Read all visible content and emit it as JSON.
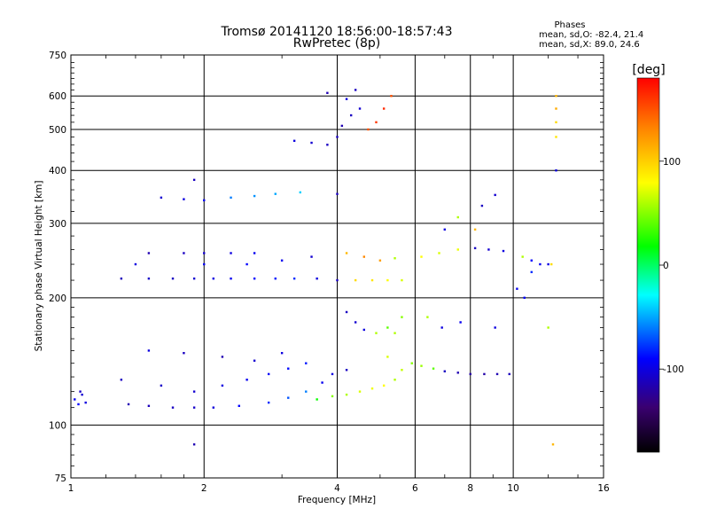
{
  "chart_data": {
    "type": "scatter",
    "title": "Tromsø 20141120 18:56:00-18:57:43",
    "subtitle": "RwPretec (8p)",
    "xlabel": "Frequency [MHz]",
    "ylabel": "Stationary phase Virtual Height [km]",
    "x_scale": "log",
    "y_scale": "log",
    "xlim": [
      1,
      16
    ],
    "ylim": [
      75,
      750
    ],
    "x_ticks": [
      1,
      2,
      4,
      6,
      8,
      10,
      16
    ],
    "x_tick_labels": [
      "1",
      "2",
      "4",
      "6",
      "8",
      "10",
      "16"
    ],
    "y_ticks": [
      75,
      100,
      200,
      300,
      400,
      500,
      600,
      750
    ],
    "y_tick_labels": [
      "75",
      "100",
      "200",
      "300",
      "400",
      "500",
      "600",
      "750"
    ],
    "grid": true,
    "stats": {
      "heading": "Phases",
      "o_line": "mean, sd,O: -82.4, 21.4",
      "x_line": "mean, sd,X: 89.0, 24.6"
    },
    "colorbar": {
      "label": "[deg]",
      "range": [
        -180,
        180
      ],
      "ticks": [
        100,
        0,
        -100
      ],
      "tick_labels": [
        "100",
        "0",
        "-100"
      ],
      "colors": [
        "#000000",
        "#3a0070",
        "#0000ff",
        "#00ffff",
        "#00ff00",
        "#ffff00",
        "#ff8000",
        "#ff0000"
      ]
    },
    "series": [
      {
        "name": "",
        "points": [
          [
            1.02,
            115,
            -95
          ],
          [
            1.04,
            112,
            -90
          ],
          [
            1.06,
            118,
            -105
          ],
          [
            1.08,
            113,
            -100
          ],
          [
            1.05,
            120,
            -110
          ],
          [
            1.35,
            112,
            -115
          ],
          [
            1.5,
            111,
            -112
          ],
          [
            1.7,
            110,
            -110
          ],
          [
            1.9,
            110,
            -108
          ],
          [
            2.1,
            110,
            -102
          ],
          [
            2.4,
            111,
            -90
          ],
          [
            2.8,
            113,
            -80
          ],
          [
            3.1,
            116,
            -70
          ],
          [
            3.4,
            120,
            -60
          ],
          [
            3.7,
            126,
            -95
          ],
          [
            3.9,
            132,
            -100
          ],
          [
            4.2,
            135,
            -110
          ],
          [
            1.3,
            128,
            -110
          ],
          [
            1.6,
            124,
            -108
          ],
          [
            1.9,
            120,
            -105
          ],
          [
            2.2,
            124,
            -100
          ],
          [
            2.5,
            128,
            -95
          ],
          [
            2.8,
            132,
            -92
          ],
          [
            3.1,
            136,
            -88
          ],
          [
            3.4,
            140,
            -85
          ],
          [
            1.5,
            150,
            -100
          ],
          [
            1.8,
            148,
            -110
          ],
          [
            2.2,
            145,
            -115
          ],
          [
            2.6,
            142,
            -105
          ],
          [
            3.0,
            148,
            -100
          ],
          [
            3.6,
            115,
            20
          ],
          [
            3.9,
            117,
            50
          ],
          [
            4.2,
            118,
            60
          ],
          [
            4.5,
            120,
            70
          ],
          [
            4.8,
            122,
            75
          ],
          [
            5.1,
            124,
            80
          ],
          [
            5.4,
            128,
            60
          ],
          [
            5.6,
            135,
            65
          ],
          [
            5.2,
            145,
            70
          ],
          [
            5.4,
            165,
            60
          ],
          [
            5.9,
            140,
            50
          ],
          [
            6.2,
            138,
            55
          ],
          [
            6.6,
            136,
            40
          ],
          [
            7.0,
            134,
            -110
          ],
          [
            7.5,
            133,
            -115
          ],
          [
            8.0,
            132,
            -120
          ],
          [
            8.6,
            132,
            -118
          ],
          [
            9.2,
            132,
            -115
          ],
          [
            9.8,
            132,
            -112
          ],
          [
            1.3,
            222,
            -112
          ],
          [
            1.5,
            222,
            -108
          ],
          [
            1.7,
            222,
            -110
          ],
          [
            1.9,
            222,
            -105
          ],
          [
            2.1,
            222,
            -100
          ],
          [
            2.3,
            222,
            -95
          ],
          [
            2.6,
            222,
            -90
          ],
          [
            2.9,
            222,
            -85
          ],
          [
            3.2,
            222,
            -80
          ],
          [
            3.6,
            222,
            -100
          ],
          [
            4.0,
            220,
            -110
          ],
          [
            4.4,
            220,
            95
          ],
          [
            4.8,
            220,
            90
          ],
          [
            5.2,
            220,
            80
          ],
          [
            5.6,
            220,
            70
          ],
          [
            1.5,
            255,
            -115
          ],
          [
            1.8,
            255,
            -110
          ],
          [
            2.0,
            255,
            -105
          ],
          [
            2.3,
            255,
            -100
          ],
          [
            2.6,
            255,
            -95
          ],
          [
            1.4,
            240,
            -100
          ],
          [
            2.0,
            240,
            -95
          ],
          [
            2.5,
            240,
            -90
          ],
          [
            3.0,
            245,
            -95
          ],
          [
            3.5,
            250,
            -105
          ],
          [
            4.2,
            255,
            110
          ],
          [
            4.6,
            250,
            130
          ],
          [
            5.0,
            245,
            120
          ],
          [
            5.4,
            248,
            60
          ],
          [
            6.2,
            250,
            80
          ],
          [
            6.8,
            255,
            70
          ],
          [
            7.5,
            260,
            75
          ],
          [
            8.2,
            262,
            -110
          ],
          [
            8.8,
            260,
            -105
          ],
          [
            9.5,
            258,
            -100
          ],
          [
            10.5,
            250,
            60
          ],
          [
            11.0,
            245,
            -90
          ],
          [
            11.5,
            240,
            -95
          ],
          [
            12.0,
            240,
            -100
          ],
          [
            4.2,
            185,
            -110
          ],
          [
            4.4,
            175,
            -105
          ],
          [
            4.6,
            168,
            -100
          ],
          [
            4.9,
            165,
            60
          ],
          [
            5.2,
            170,
            40
          ],
          [
            5.6,
            180,
            50
          ],
          [
            6.4,
            180,
            60
          ],
          [
            6.9,
            170,
            -100
          ],
          [
            7.6,
            175,
            -95
          ],
          [
            9.1,
            170,
            -100
          ],
          [
            1.6,
            345,
            -105
          ],
          [
            1.8,
            342,
            -100
          ],
          [
            2.0,
            340,
            -95
          ],
          [
            2.3,
            345,
            -60
          ],
          [
            2.6,
            348,
            -55
          ],
          [
            2.9,
            352,
            -50
          ],
          [
            3.3,
            355,
            -40
          ],
          [
            4.0,
            352,
            -110
          ],
          [
            1.9,
            380,
            -110
          ],
          [
            3.2,
            470,
            -100
          ],
          [
            3.5,
            465,
            -105
          ],
          [
            3.8,
            460,
            -110
          ],
          [
            4.1,
            510,
            -115
          ],
          [
            4.3,
            540,
            -110
          ],
          [
            4.5,
            560,
            -105
          ],
          [
            4.7,
            500,
            150
          ],
          [
            4.9,
            520,
            160
          ],
          [
            5.1,
            560,
            165
          ],
          [
            5.3,
            600,
            150
          ],
          [
            4.0,
            480,
            -110
          ],
          [
            4.2,
            590,
            -100
          ],
          [
            4.4,
            620,
            -110
          ],
          [
            3.8,
            610,
            -115
          ],
          [
            7.0,
            290,
            -100
          ],
          [
            7.5,
            310,
            60
          ],
          [
            8.5,
            330,
            -110
          ],
          [
            9.1,
            350,
            -105
          ],
          [
            8.2,
            290,
            110
          ],
          [
            12.5,
            600,
            110
          ],
          [
            12.5,
            560,
            115
          ],
          [
            12.5,
            520,
            95
          ],
          [
            12.5,
            480,
            90
          ],
          [
            12.5,
            400,
            -100
          ],
          [
            12.2,
            240,
            95
          ],
          [
            12.0,
            170,
            60
          ],
          [
            12.3,
            90,
            110
          ],
          [
            1.9,
            90,
            -115
          ],
          [
            11.0,
            230,
            -80
          ],
          [
            10.6,
            200,
            -90
          ],
          [
            10.2,
            210,
            -95
          ]
        ]
      }
    ]
  }
}
